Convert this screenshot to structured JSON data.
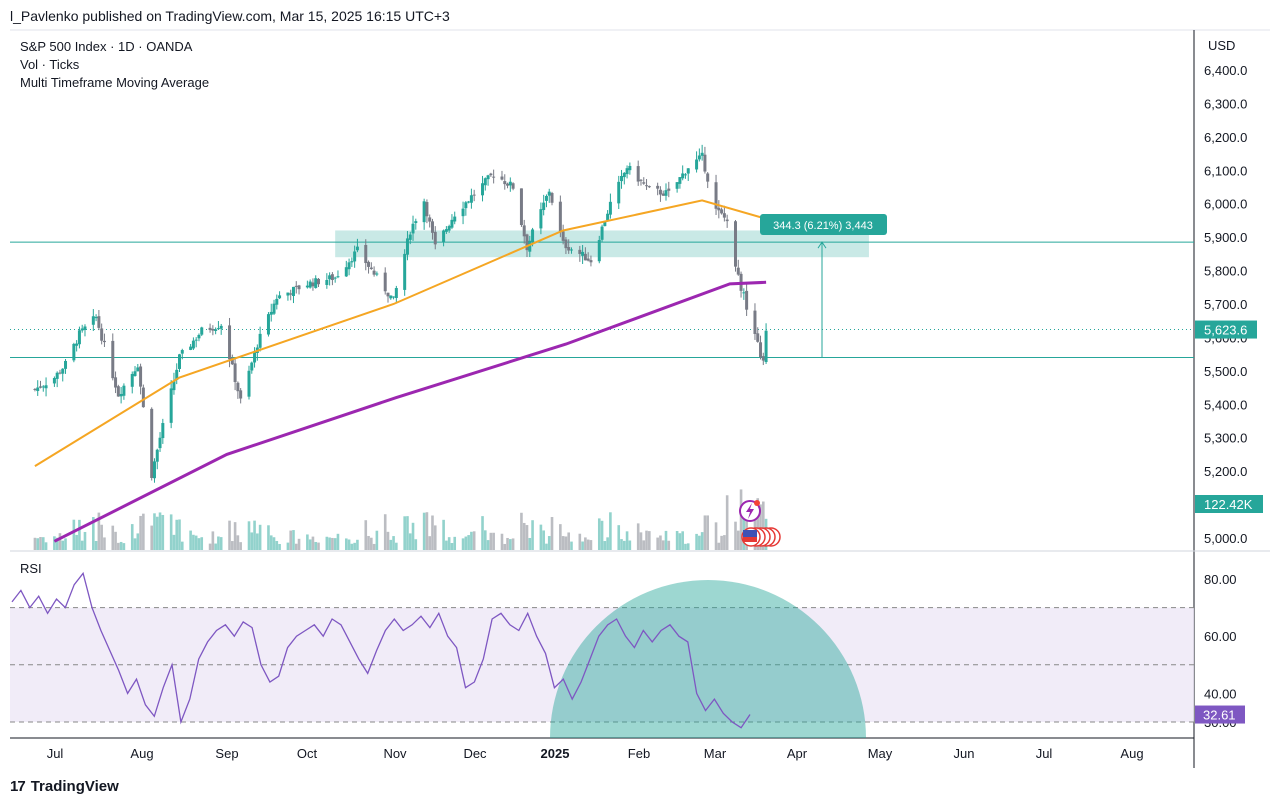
{
  "header": {
    "publisher_line": "l_Pavlenko published on TradingView.com, Mar 15, 2025 16:15 UTC+3"
  },
  "legend": {
    "symbol_line": "S&P 500 Index · 1D · OANDA",
    "volume_line": "Vol · Ticks",
    "indicator_line": "Multi Timeframe Moving Average"
  },
  "price_axis": {
    "currency": "USD",
    "ticks": [
      "6,400.0",
      "6,300.0",
      "6,200.0",
      "6,100.0",
      "6,000.0",
      "5,900.0",
      "5,800.0",
      "5,700.0",
      "5,600.0",
      "5,500.0",
      "5,400.0",
      "5,300.0",
      "5,200.0",
      "5,000.0"
    ],
    "last_price_label": "5,623.6",
    "volume_label": "122.42K"
  },
  "time_axis": {
    "labels": [
      "Jul",
      "Aug",
      "Sep",
      "Oct",
      "Nov",
      "Dec",
      "2025",
      "Feb",
      "Mar",
      "Apr",
      "May",
      "Jun",
      "Jul",
      "Aug"
    ]
  },
  "measure_tool": {
    "label": "344.3 (6.21%) 3,443"
  },
  "rsi": {
    "title": "RSI",
    "ticks": [
      "80.00",
      "60.00",
      "40.00",
      "30.00"
    ],
    "current_label": "32.61"
  },
  "footer": {
    "brand": "TradingView",
    "logo": "17"
  },
  "colors": {
    "up": "#26a69a",
    "down": "#787b86",
    "ma_short": "#f5a623",
    "ma_long": "#9c27b0",
    "rsi_line": "#7e57c2",
    "rsi_band": "#ede7f6",
    "zone": "#26a69a"
  },
  "chart_data": [
    {
      "type": "candlestick",
      "title": "S&P 500 Index · 1D · OANDA",
      "ylim": [
        4950,
        6480
      ],
      "x_months": [
        "Jul",
        "Aug",
        "Sep",
        "Oct",
        "Nov",
        "Dec",
        "2025",
        "Feb",
        "Mar"
      ],
      "close_path": [
        [
          "Jun 24",
          5445
        ],
        [
          "Jul 1",
          5480
        ],
        [
          "Jul 5",
          5520
        ],
        [
          "Jul 10",
          5610
        ],
        [
          "Jul 16",
          5660
        ],
        [
          "Jul 24",
          5430
        ],
        [
          "Jul 31",
          5520
        ],
        [
          "Aug 5",
          5190
        ],
        [
          "Aug 8",
          5300
        ],
        [
          "Aug 15",
          5540
        ],
        [
          "Aug 23",
          5620
        ],
        [
          "Aug 30",
          5640
        ],
        [
          "Sep 6",
          5410
        ],
        [
          "Sep 12",
          5580
        ],
        [
          "Sep 19",
          5720
        ],
        [
          "Sep 30",
          5760
        ],
        [
          "Oct 10",
          5780
        ],
        [
          "Oct 18",
          5860
        ],
        [
          "Oct 31",
          5710
        ],
        [
          "Nov 6",
          5920
        ],
        [
          "Nov 11",
          6010
        ],
        [
          "Nov 15",
          5870
        ],
        [
          "Nov 22",
          5970
        ],
        [
          "Nov 29",
          6030
        ],
        [
          "Dec 6",
          6090
        ],
        [
          "Dec 13",
          6050
        ],
        [
          "Dec 18",
          5870
        ],
        [
          "Dec 26",
          6040
        ],
        [
          "Dec 31",
          5880
        ],
        [
          "Jan 10",
          5830
        ],
        [
          "Jan 17",
          6000
        ],
        [
          "Jan 23",
          6110
        ],
        [
          "Jan 31",
          6040
        ],
        [
          "Feb 7",
          6030
        ],
        [
          "Feb 14",
          6110
        ],
        [
          "Feb 19",
          6140
        ],
        [
          "Feb 24",
          5980
        ],
        [
          "Feb 28",
          5950
        ],
        [
          "Mar 4",
          5780
        ],
        [
          "Mar 10",
          5610
        ],
        [
          "Mar 13",
          5520
        ],
        [
          "Mar 14",
          5620
        ]
      ],
      "series": [
        {
          "name": "MA short",
          "color": "#f5a623",
          "values": [
            [
              "Jun 24",
              5215
            ],
            [
              "Aug 15",
              5480
            ],
            [
              "Oct 31",
              5700
            ],
            [
              "Dec 31",
              5920
            ],
            [
              "Feb 19",
              6010
            ],
            [
              "Mar 14",
              5955
            ]
          ]
        },
        {
          "name": "MA long",
          "color": "#9c27b0",
          "values": [
            [
              "Jul 1",
              4990
            ],
            [
              "Sep 1",
              5250
            ],
            [
              "Nov 1",
              5420
            ],
            [
              "Jan 1",
              5580
            ],
            [
              "Mar 1",
              5760
            ],
            [
              "Mar 14",
              5765
            ]
          ]
        }
      ],
      "horizontal_lines": [
        5885,
        5540
      ],
      "zone": {
        "from": "Oct 10",
        "to": "Apr 20",
        "low": 5840,
        "high": 5920
      },
      "last_price": 5623.6
    },
    {
      "type": "line",
      "title": "RSI",
      "ylim": [
        24,
        85
      ],
      "bands": [
        30,
        50,
        70
      ],
      "values": [
        72,
        76,
        70,
        74,
        68,
        73,
        70,
        78,
        82,
        70,
        62,
        55,
        48,
        40,
        45,
        36,
        32,
        42,
        50,
        30,
        38,
        52,
        58,
        62,
        64,
        60,
        65,
        63,
        50,
        44,
        46,
        56,
        60,
        62,
        64,
        60,
        66,
        64,
        58,
        52,
        47,
        55,
        62,
        66,
        62,
        64,
        67,
        63,
        68,
        60,
        56,
        42,
        44,
        52,
        66,
        68,
        64,
        62,
        68,
        60,
        54,
        42,
        45,
        38,
        44,
        52,
        60,
        64,
        66,
        60,
        56,
        62,
        58,
        62,
        64,
        60,
        58,
        40,
        34,
        38,
        33,
        30,
        28,
        32.61
      ],
      "current": 32.61
    }
  ]
}
